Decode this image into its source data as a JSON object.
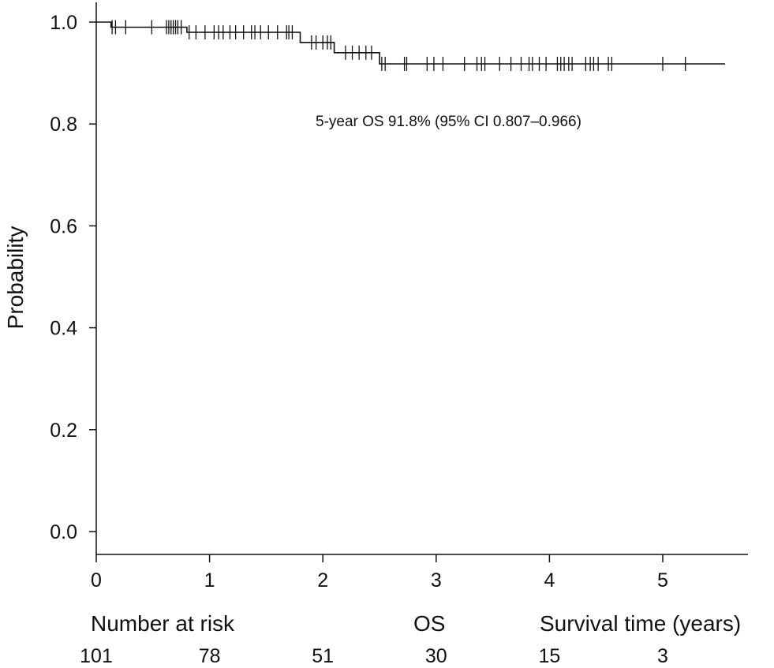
{
  "chart_data": {
    "type": "line",
    "ylabel": "Probability",
    "xlim": [
      0,
      5.75
    ],
    "ylim": [
      0.0,
      1.0
    ],
    "x_ticks": [
      0,
      1,
      2,
      3,
      4,
      5
    ],
    "y_ticks": [
      0.0,
      0.2,
      0.4,
      0.6,
      0.8,
      1.0
    ],
    "x_tick_labels": [
      "0",
      "1",
      "2",
      "3",
      "4",
      "5"
    ],
    "y_tick_labels": [
      "0.0",
      "0.2",
      "0.4",
      "0.6",
      "0.8",
      "1.0"
    ],
    "grid": false,
    "annotation": "5-year OS 91.8% (95% CI 0.807–0.966)",
    "series": [
      {
        "steps": [
          [
            0,
            1.0
          ],
          [
            0.13,
            1.0
          ],
          [
            0.13,
            0.99
          ],
          [
            0.8,
            0.99
          ],
          [
            0.8,
            0.98
          ],
          [
            1.8,
            0.98
          ],
          [
            1.8,
            0.96
          ],
          [
            2.1,
            0.96
          ],
          [
            2.1,
            0.94
          ],
          [
            2.5,
            0.94
          ],
          [
            2.5,
            0.918
          ],
          [
            5.55,
            0.918
          ]
        ],
        "censored": [
          [
            0.14,
            0.99
          ],
          [
            0.17,
            0.99
          ],
          [
            0.26,
            0.99
          ],
          [
            0.49,
            0.99
          ],
          [
            0.62,
            0.99
          ],
          [
            0.64,
            0.99
          ],
          [
            0.66,
            0.99
          ],
          [
            0.68,
            0.99
          ],
          [
            0.7,
            0.99
          ],
          [
            0.72,
            0.99
          ],
          [
            0.75,
            0.99
          ],
          [
            0.82,
            0.98
          ],
          [
            0.88,
            0.98
          ],
          [
            0.96,
            0.98
          ],
          [
            1.04,
            0.98
          ],
          [
            1.08,
            0.98
          ],
          [
            1.12,
            0.98
          ],
          [
            1.18,
            0.98
          ],
          [
            1.23,
            0.98
          ],
          [
            1.3,
            0.98
          ],
          [
            1.37,
            0.98
          ],
          [
            1.4,
            0.98
          ],
          [
            1.45,
            0.98
          ],
          [
            1.52,
            0.98
          ],
          [
            1.6,
            0.98
          ],
          [
            1.68,
            0.98
          ],
          [
            1.7,
            0.98
          ],
          [
            1.73,
            0.98
          ],
          [
            1.9,
            0.96
          ],
          [
            1.94,
            0.96
          ],
          [
            2.0,
            0.96
          ],
          [
            2.04,
            0.96
          ],
          [
            2.07,
            0.96
          ],
          [
            2.2,
            0.94
          ],
          [
            2.26,
            0.94
          ],
          [
            2.32,
            0.94
          ],
          [
            2.38,
            0.94
          ],
          [
            2.43,
            0.94
          ],
          [
            2.52,
            0.918
          ],
          [
            2.55,
            0.918
          ],
          [
            2.72,
            0.918
          ],
          [
            2.74,
            0.918
          ],
          [
            2.92,
            0.918
          ],
          [
            2.98,
            0.918
          ],
          [
            3.06,
            0.918
          ],
          [
            3.25,
            0.918
          ],
          [
            3.36,
            0.918
          ],
          [
            3.4,
            0.918
          ],
          [
            3.43,
            0.918
          ],
          [
            3.56,
            0.918
          ],
          [
            3.66,
            0.918
          ],
          [
            3.75,
            0.918
          ],
          [
            3.82,
            0.918
          ],
          [
            3.85,
            0.918
          ],
          [
            3.91,
            0.918
          ],
          [
            3.97,
            0.918
          ],
          [
            4.07,
            0.918
          ],
          [
            4.1,
            0.918
          ],
          [
            4.13,
            0.918
          ],
          [
            4.17,
            0.918
          ],
          [
            4.2,
            0.918
          ],
          [
            4.32,
            0.918
          ],
          [
            4.36,
            0.918
          ],
          [
            4.39,
            0.918
          ],
          [
            4.43,
            0.918
          ],
          [
            4.52,
            0.918
          ],
          [
            4.55,
            0.918
          ],
          [
            5.0,
            0.918
          ],
          [
            5.2,
            0.918
          ]
        ]
      }
    ]
  },
  "risk_table": {
    "heading": "Number at risk",
    "group_label": "OS",
    "time_label": "Survival time (years)",
    "counts": [
      "101",
      "78",
      "51",
      "30",
      "15",
      "3"
    ],
    "count_times": [
      0,
      1,
      2,
      3,
      4,
      5
    ]
  }
}
